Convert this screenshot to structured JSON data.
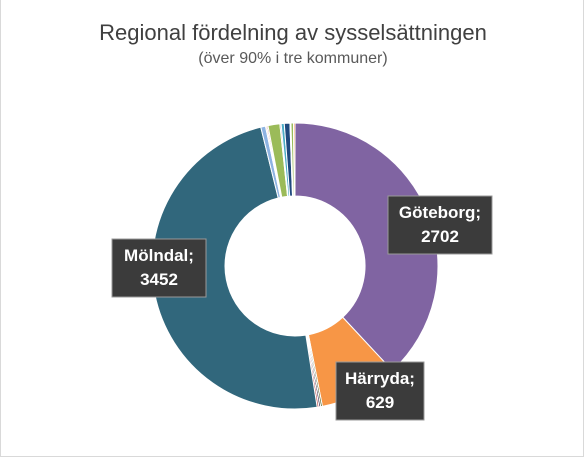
{
  "chart_data": {
    "type": "pie",
    "variant": "donut",
    "title": "Regional fördelning av sysselsättningen",
    "subtitle": "(över 90% i tre kommuner)",
    "slices": [
      {
        "value": 2702,
        "color": "#8064a2",
        "label": "Göteborg; 2702",
        "label_lines": [
          "Göteborg;",
          "2702"
        ]
      },
      {
        "value": 629,
        "color": "#f79646",
        "label": "Härryda; 629",
        "label_lines": [
          "Härryda;",
          "629"
        ]
      },
      {
        "value": 14,
        "color": "#4f6228",
        "label": null
      },
      {
        "value": 14,
        "color": "#3f3151",
        "label": null
      },
      {
        "value": 14,
        "color": "#c0504d",
        "label": null
      },
      {
        "value": 3452,
        "color": "#31677c",
        "label": "Mölndal; 3452",
        "label_lines": [
          "Mölndal;",
          "3452"
        ]
      },
      {
        "value": 38,
        "color": "#8db3e2",
        "label": null
      },
      {
        "value": 10,
        "color": "#fac090",
        "label": null
      },
      {
        "value": 10,
        "color": "#c0504d",
        "label": null
      },
      {
        "value": 95,
        "color": "#9bbb59",
        "label": null
      },
      {
        "value": 10,
        "color": "#8064a2",
        "label": null
      },
      {
        "value": 25,
        "color": "#4bacc6",
        "label": null
      },
      {
        "value": 45,
        "color": "#1f497d",
        "label": null
      },
      {
        "value": 8,
        "color": "#c0504d",
        "label": null
      },
      {
        "value": 20,
        "color": "#9bbb59",
        "label": null
      },
      {
        "value": 12,
        "color": "#f79646",
        "label": null
      }
    ],
    "start_angle_deg": 0,
    "legend": "none"
  }
}
